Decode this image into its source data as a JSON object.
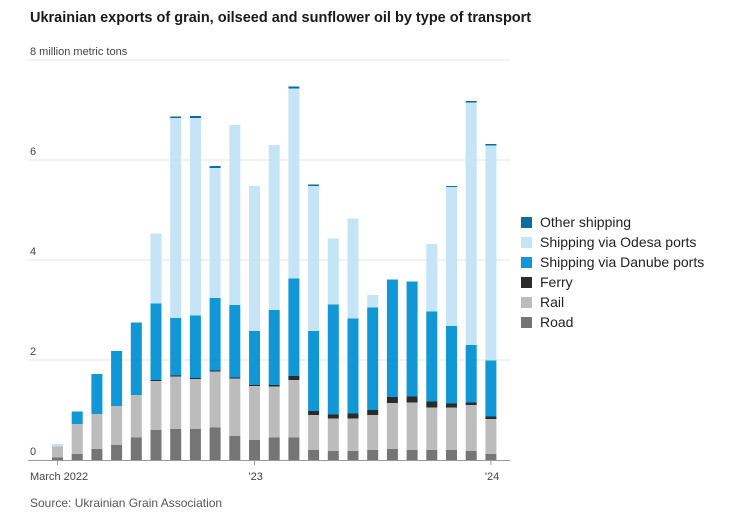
{
  "title": "Ukrainian exports of grain, oilseed and sunflower oil by type of transport",
  "source": "Source: Ukrainian Grain Association",
  "colors": {
    "road": "#757575",
    "rail": "#bcbcbc",
    "ferry": "#2b2b2b",
    "danube": "#1197d6",
    "odesa": "#c5e4f6",
    "other": "#0a6e9e",
    "grid": "#e4e4e4",
    "axis": "#999999"
  },
  "legend": [
    {
      "key": "other",
      "label": "Other shipping"
    },
    {
      "key": "odesa",
      "label": "Shipping via Odesa ports"
    },
    {
      "key": "danube",
      "label": "Shipping via Danube ports"
    },
    {
      "key": "ferry",
      "label": "Ferry"
    },
    {
      "key": "rail",
      "label": "Rail"
    },
    {
      "key": "road",
      "label": "Road"
    }
  ],
  "chart_data": {
    "type": "bar",
    "stacked": true,
    "title": "Ukrainian exports of grain, oilseed and sunflower oil by type of transport",
    "ylabel": "8 million metric tons",
    "ylim": [
      0,
      8
    ],
    "yticks": [
      {
        "value": 0,
        "label": "0"
      },
      {
        "value": 2,
        "label": "2"
      },
      {
        "value": 4,
        "label": "4"
      },
      {
        "value": 6,
        "label": "6"
      },
      {
        "value": 8,
        "label": "8 million metric tons"
      }
    ],
    "xtick_labels": [
      {
        "index": 0,
        "label": "March 2022"
      },
      {
        "index": 10,
        "label": "'23"
      },
      {
        "index": 22,
        "label": "'24"
      }
    ],
    "categories": [
      "Mar 2022",
      "Apr 2022",
      "May 2022",
      "Jun 2022",
      "Jul 2022",
      "Aug 2022",
      "Sep 2022",
      "Oct 2022",
      "Nov 2022",
      "Dec 2022",
      "Jan 2023",
      "Feb 2023",
      "Mar 2023",
      "Apr 2023",
      "May 2023",
      "Jun 2023",
      "Jul 2023",
      "Aug 2023",
      "Sep 2023",
      "Oct 2023",
      "Nov 2023",
      "Dec 2023",
      "Jan 2024"
    ],
    "series": [
      {
        "name": "Road",
        "key": "road",
        "values": [
          0.05,
          0.12,
          0.22,
          0.3,
          0.45,
          0.6,
          0.62,
          0.62,
          0.65,
          0.48,
          0.4,
          0.45,
          0.45,
          0.2,
          0.18,
          0.18,
          0.2,
          0.22,
          0.2,
          0.2,
          0.2,
          0.18,
          0.12
        ]
      },
      {
        "name": "Rail",
        "key": "rail",
        "values": [
          0.22,
          0.6,
          0.7,
          0.78,
          0.85,
          0.98,
          1.05,
          1.0,
          1.12,
          1.15,
          1.08,
          1.02,
          1.15,
          0.7,
          0.65,
          0.65,
          0.7,
          0.92,
          0.95,
          0.85,
          0.85,
          0.92,
          0.7
        ]
      },
      {
        "name": "Ferry",
        "key": "ferry",
        "values": [
          0,
          0,
          0,
          0,
          0,
          0.02,
          0.02,
          0.02,
          0.02,
          0.02,
          0.02,
          0.03,
          0.08,
          0.08,
          0.08,
          0.1,
          0.1,
          0.12,
          0.12,
          0.12,
          0.08,
          0.05,
          0.05
        ]
      },
      {
        "name": "Shipping via Danube ports",
        "key": "danube",
        "values": [
          0,
          0.25,
          0.8,
          1.1,
          1.45,
          1.53,
          1.15,
          1.25,
          1.45,
          1.45,
          1.08,
          1.5,
          1.95,
          1.6,
          2.2,
          1.9,
          2.05,
          2.35,
          2.3,
          1.8,
          1.55,
          1.15,
          1.12
        ]
      },
      {
        "name": "Shipping via Odesa ports",
        "key": "odesa",
        "values": [
          0.05,
          0,
          0,
          0,
          0,
          1.4,
          4.0,
          3.95,
          2.6,
          3.6,
          2.9,
          3.3,
          3.8,
          2.9,
          1.32,
          2.0,
          0.25,
          0,
          0,
          1.35,
          2.78,
          4.85,
          4.3
        ]
      },
      {
        "name": "Other shipping",
        "key": "other",
        "values": [
          0,
          0,
          0,
          0,
          0,
          0,
          0.03,
          0.04,
          0.04,
          0,
          0,
          0,
          0.04,
          0.03,
          0,
          0,
          0,
          0,
          0,
          0,
          0.02,
          0.03,
          0.03
        ]
      }
    ]
  }
}
